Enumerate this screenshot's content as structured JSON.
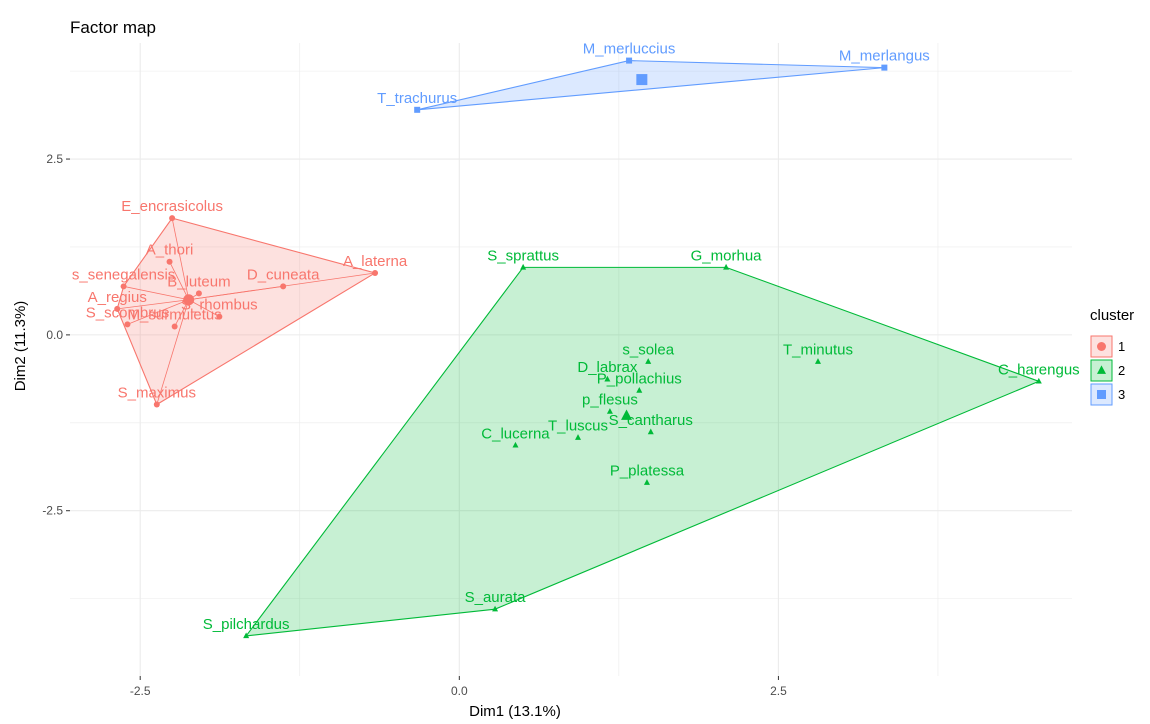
{
  "chart_data": {
    "type": "scatter",
    "title": "Factor map",
    "xlabel": "Dim1 (13.1%)",
    "ylabel": "Dim2 (11.3%)",
    "xlim": [
      -3.05,
      4.8
    ],
    "ylim": [
      -4.85,
      4.15
    ],
    "x_ticks": [
      -2.5,
      0.0,
      2.5
    ],
    "x_tick_labels": [
      "-2.5",
      "0.0",
      "2.5"
    ],
    "y_ticks": [
      -2.5,
      0.0,
      2.5
    ],
    "y_tick_labels": [
      "-2.5",
      "0.0",
      "2.5"
    ],
    "grid": true,
    "legend": {
      "title": "cluster",
      "position": "right",
      "entries": [
        "1",
        "2",
        "3"
      ]
    },
    "clusters": [
      {
        "name": "1",
        "color": "#F8766D",
        "marker": "circle",
        "centroid": [
          -2.12,
          0.5
        ],
        "points": [
          {
            "label": "E_encrasicolus",
            "x": -2.25,
            "y": 1.66
          },
          {
            "label": "A_thori",
            "x": -2.27,
            "y": 1.04
          },
          {
            "label": "s_senegalensis",
            "x": -2.63,
            "y": 0.69
          },
          {
            "label": "B_luteum",
            "x": -2.04,
            "y": 0.59
          },
          {
            "label": "A_laterna",
            "x": -0.66,
            "y": 0.88
          },
          {
            "label": "D_cuneata",
            "x": -1.38,
            "y": 0.69
          },
          {
            "label": "A_regius",
            "x": -2.68,
            "y": 0.37
          },
          {
            "label": "S_scombrus",
            "x": -2.6,
            "y": 0.15
          },
          {
            "label": "S_rhombus",
            "x": -1.88,
            "y": 0.26
          },
          {
            "label": "M_surmuletus",
            "x": -2.23,
            "y": 0.12
          },
          {
            "label": "S_maximus",
            "x": -2.37,
            "y": -0.99
          }
        ]
      },
      {
        "name": "2",
        "color": "#00BA38",
        "marker": "triangle",
        "centroid": [
          1.31,
          -1.15
        ],
        "points": [
          {
            "label": "S_sprattus",
            "x": 0.5,
            "y": 0.96
          },
          {
            "label": "G_morhua",
            "x": 2.09,
            "y": 0.96
          },
          {
            "label": "D_labrax",
            "x": 1.16,
            "y": -0.63
          },
          {
            "label": "s_solea",
            "x": 1.48,
            "y": -0.38
          },
          {
            "label": "T_minutus",
            "x": 2.81,
            "y": -0.38
          },
          {
            "label": "C_harengus",
            "x": 4.54,
            "y": -0.66
          },
          {
            "label": "p_flesus",
            "x": 1.18,
            "y": -1.09
          },
          {
            "label": "P_pollachius",
            "x": 1.41,
            "y": -0.79
          },
          {
            "label": "T_luscus",
            "x": 0.93,
            "y": -1.46
          },
          {
            "label": "C_lucerna",
            "x": 0.44,
            "y": -1.57
          },
          {
            "label": "S_cantharus",
            "x": 1.5,
            "y": -1.38
          },
          {
            "label": "P_platessa",
            "x": 1.47,
            "y": -2.1
          },
          {
            "label": "S_aurata",
            "x": 0.28,
            "y": -3.9
          },
          {
            "label": "S_pilchardus",
            "x": -1.67,
            "y": -4.28
          }
        ]
      },
      {
        "name": "3",
        "color": "#619CFF",
        "marker": "square",
        "centroid": [
          1.43,
          3.63
        ],
        "points": [
          {
            "label": "M_merluccius",
            "x": 1.33,
            "y": 3.9
          },
          {
            "label": "M_merlangus",
            "x": 3.33,
            "y": 3.8
          },
          {
            "label": "T_trachurus",
            "x": -0.33,
            "y": 3.2
          }
        ]
      }
    ]
  }
}
